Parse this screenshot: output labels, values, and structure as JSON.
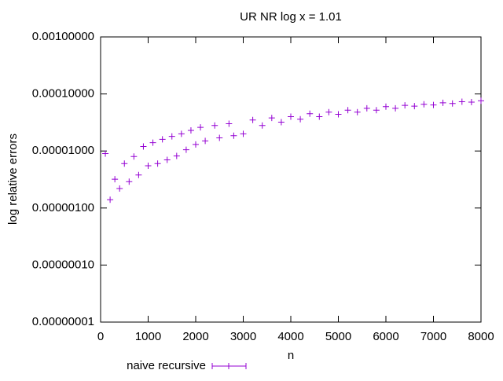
{
  "chart_data": {
    "type": "scatter",
    "title": "UR NR log x = 1.01",
    "x_label": "n",
    "y_label": "log relative errors",
    "yscale": "log",
    "legend_position": "bottom-left",
    "xlim": [
      0,
      8000
    ],
    "xticks": [
      0,
      1000,
      2000,
      3000,
      4000,
      5000,
      6000,
      7000,
      8000
    ],
    "ylim": [
      1e-08,
      0.001
    ],
    "yticks": [
      {
        "value": 1e-08,
        "label": "0.00000001"
      },
      {
        "value": 1e-07,
        "label": "0.00000010"
      },
      {
        "value": 1e-06,
        "label": "0.00000100"
      },
      {
        "value": 1e-05,
        "label": "0.00001000"
      },
      {
        "value": 0.0001,
        "label": "0.00010000"
      },
      {
        "value": 0.001,
        "label": "0.00100000"
      }
    ],
    "series": [
      {
        "name": "naive recursive",
        "color": "#9400d3",
        "x": [
          100,
          200,
          300,
          400,
          500,
          600,
          700,
          800,
          900,
          1000,
          1100,
          1200,
          1300,
          1400,
          1500,
          1600,
          1700,
          1800,
          1900,
          2000,
          2100,
          2200,
          2400,
          2500,
          2700,
          2800,
          3000,
          3200,
          3400,
          3600,
          3800,
          4000,
          4200,
          4400,
          4600,
          4800,
          5000,
          5200,
          5400,
          5600,
          5800,
          6000,
          6200,
          6400,
          6600,
          6800,
          7000,
          7200,
          7400,
          7600,
          7800,
          8000
        ],
        "values": [
          9e-06,
          1.4e-06,
          3.2e-06,
          2.2e-06,
          6e-06,
          2.9e-06,
          8e-06,
          3.8e-06,
          1.2e-05,
          5.5e-06,
          1.4e-05,
          6e-06,
          1.6e-05,
          7e-06,
          1.8e-05,
          8.2e-06,
          2e-05,
          1.05e-05,
          2.3e-05,
          1.3e-05,
          2.6e-05,
          1.5e-05,
          2.8e-05,
          1.7e-05,
          3e-05,
          1.85e-05,
          2e-05,
          3.5e-05,
          2.8e-05,
          3.8e-05,
          3.2e-05,
          4e-05,
          3.6e-05,
          4.5e-05,
          4e-05,
          4.8e-05,
          4.4e-05,
          5.2e-05,
          4.8e-05,
          5.6e-05,
          5.2e-05,
          6e-05,
          5.6e-05,
          6.3e-05,
          6.1e-05,
          6.6e-05,
          6.4e-05,
          7e-05,
          6.8e-05,
          7.3e-05,
          7.2e-05,
          7.6e-05
        ]
      }
    ]
  }
}
